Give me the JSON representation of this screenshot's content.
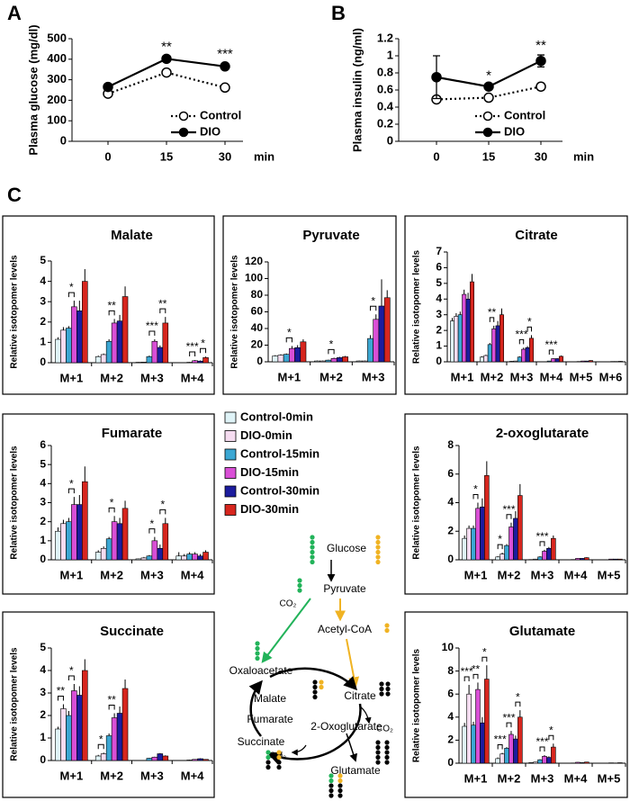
{
  "panels": [
    "A",
    "B",
    "C"
  ],
  "chart_data": [
    {
      "type": "line",
      "y_label": "Plasma glucose (mg/dl)",
      "x_label": "min",
      "categories": [
        "0",
        "15",
        "30"
      ],
      "ylim": [
        0,
        500
      ],
      "yticks": [
        0,
        100,
        200,
        300,
        400,
        500
      ],
      "legend": "lower right",
      "series": [
        {
          "name": "Control",
          "color": "#000000",
          "style": "dotted",
          "marker": "open",
          "values": [
            232,
            335,
            262
          ],
          "errors": [
            8,
            10,
            10
          ]
        },
        {
          "name": "DIO",
          "color": "#000000",
          "style": "solid",
          "marker": "filled",
          "values": [
            265,
            402,
            365
          ],
          "errors": [
            10,
            12,
            15
          ]
        }
      ],
      "annotations": [
        null,
        "**",
        "***"
      ]
    },
    {
      "type": "line",
      "y_label": "Plasma insulin (ng/ml)",
      "x_label": "min",
      "categories": [
        "0",
        "15",
        "30"
      ],
      "ylim": [
        0,
        1.2
      ],
      "yticks": [
        0,
        0.2,
        0.4,
        0.6,
        0.8,
        1,
        1.2
      ],
      "legend": "lower right",
      "series": [
        {
          "name": "Control",
          "color": "#000000",
          "style": "dotted",
          "marker": "open",
          "values": [
            0.49,
            0.51,
            0.64
          ],
          "errors": [
            0.03,
            0.03,
            0.04
          ]
        },
        {
          "name": "DIO",
          "color": "#000000",
          "style": "solid",
          "marker": "filled",
          "values": [
            0.75,
            0.64,
            0.94
          ],
          "errors": [
            0.25,
            0.02,
            0.07
          ]
        }
      ],
      "annotations": [
        null,
        "*",
        "**"
      ]
    },
    {
      "type": "bar",
      "title": "Malate",
      "y_label": "Relative isotopomer levels",
      "categories": [
        "M+1",
        "M+2",
        "M+3",
        "M+4"
      ],
      "ylim": [
        0,
        5
      ],
      "yticks": [
        0,
        1,
        2,
        3,
        4,
        5
      ],
      "series": [
        {
          "name": "Control-0min",
          "color": "#dff3f7",
          "values": [
            1.15,
            0.3,
            0.02,
            0
          ],
          "errors": [
            0.1,
            0.05,
            0.01,
            0.01
          ]
        },
        {
          "name": "DIO-0min",
          "color": "#f5dcf0",
          "values": [
            1.6,
            0.4,
            0.03,
            0
          ],
          "errors": [
            0.15,
            0.05,
            0.01,
            0.01
          ]
        },
        {
          "name": "Control-15min",
          "color": "#3ba7d3",
          "values": [
            1.7,
            1.05,
            0.3,
            0.02
          ],
          "errors": [
            0.1,
            0.1,
            0.05,
            0.01
          ]
        },
        {
          "name": "DIO-15min",
          "color": "#d94fd6",
          "values": [
            2.75,
            1.95,
            1.05,
            0.1
          ],
          "errors": [
            0.3,
            0.2,
            0.1,
            0.03
          ]
        },
        {
          "name": "Control-30min",
          "color": "#1c1c9e",
          "values": [
            2.55,
            2.05,
            0.75,
            0.08
          ],
          "errors": [
            0.5,
            0.3,
            0.1,
            0.03
          ]
        },
        {
          "name": "DIO-30min",
          "color": "#d7261e",
          "values": [
            4.0,
            3.25,
            1.95,
            0.25
          ],
          "errors": [
            0.6,
            0.5,
            0.3,
            0.05
          ]
        }
      ],
      "significance": [
        [
          null,
          "*",
          null
        ],
        [
          null,
          "**",
          null
        ],
        [
          null,
          "***",
          "**"
        ],
        [
          null,
          "***",
          "*"
        ]
      ]
    },
    {
      "type": "bar",
      "title": "Pyruvate",
      "y_label": "Relative isotopomer levels",
      "categories": [
        "M+1",
        "M+2",
        "M+3"
      ],
      "ylim": [
        0,
        120
      ],
      "yticks": [
        0,
        20,
        40,
        60,
        80,
        100,
        120
      ],
      "series": [
        {
          "color": "#dff3f7",
          "values": [
            7,
            1,
            1
          ],
          "errors": [
            1,
            0.5,
            0.5
          ]
        },
        {
          "color": "#f5dcf0",
          "values": [
            8,
            1,
            1
          ],
          "errors": [
            1,
            0.5,
            0.5
          ]
        },
        {
          "color": "#3ba7d3",
          "values": [
            9,
            2,
            28
          ],
          "errors": [
            1,
            0.5,
            4
          ]
        },
        {
          "color": "#d94fd6",
          "values": [
            16,
            4,
            51
          ],
          "errors": [
            3,
            1,
            6
          ]
        },
        {
          "color": "#1c1c9e",
          "values": [
            17,
            5,
            67
          ],
          "errors": [
            3,
            1,
            32
          ]
        },
        {
          "color": "#d7261e",
          "values": [
            24,
            6,
            77
          ],
          "errors": [
            3,
            1,
            9
          ]
        }
      ],
      "significance": [
        [
          null,
          "*",
          null
        ],
        [
          null,
          "*",
          null
        ],
        [
          null,
          "*",
          null
        ]
      ]
    },
    {
      "type": "bar",
      "title": "Citrate",
      "y_label": "Relative isotopomer levels",
      "categories": [
        "M+1",
        "M+2",
        "M+3",
        "M+4",
        "M+5",
        "M+6"
      ],
      "ylim": [
        0,
        7
      ],
      "yticks": [
        0,
        1,
        2,
        3,
        4,
        5,
        6,
        7
      ],
      "series": [
        {
          "color": "#dff3f7",
          "values": [
            2.6,
            0.3,
            0.03,
            0,
            0,
            0
          ],
          "errors": [
            0.2,
            0.05,
            0.01,
            0.01,
            0.01,
            0.01
          ]
        },
        {
          "color": "#f5dcf0",
          "values": [
            2.9,
            0.4,
            0.05,
            0,
            0,
            0
          ],
          "errors": [
            0.2,
            0.05,
            0.01,
            0.01,
            0.01,
            0.01
          ]
        },
        {
          "color": "#3ba7d3",
          "values": [
            3,
            1.1,
            0.3,
            0.05,
            0.02,
            0
          ],
          "errors": [
            0.2,
            0.1,
            0.05,
            0.01,
            0.01,
            0.01
          ]
        },
        {
          "color": "#d94fd6",
          "values": [
            4.3,
            2.1,
            0.8,
            0.2,
            0.05,
            0.02
          ],
          "errors": [
            0.3,
            0.2,
            0.1,
            0.03,
            0.01,
            0.01
          ]
        },
        {
          "color": "#1c1c9e",
          "values": [
            4,
            2.3,
            0.9,
            0.2,
            0.05,
            0.02
          ],
          "errors": [
            0.4,
            0.3,
            0.1,
            0.03,
            0.01,
            0.01
          ]
        },
        {
          "color": "#d7261e",
          "values": [
            5.1,
            3,
            1.5,
            0.35,
            0.08,
            0.03
          ],
          "errors": [
            0.5,
            0.4,
            0.2,
            0.05,
            0.02,
            0.01
          ]
        }
      ],
      "significance": [
        [
          null,
          null,
          null
        ],
        [
          null,
          "**",
          null
        ],
        [
          null,
          "***",
          "*"
        ],
        [
          null,
          "***",
          null
        ],
        [
          null,
          null,
          null
        ],
        [
          null,
          null,
          null
        ]
      ]
    },
    {
      "type": "bar",
      "title": "Fumarate",
      "y_label": "Relative isotopomer levels",
      "categories": [
        "M+1",
        "M+2",
        "M+3",
        "M+4"
      ],
      "ylim": [
        0,
        6
      ],
      "yticks": [
        0,
        1,
        2,
        3,
        4,
        5,
        6
      ],
      "series": [
        {
          "color": "#dff3f7",
          "values": [
            1.5,
            0.4,
            0.05,
            0.2
          ],
          "errors": [
            0.2,
            0.1,
            0.02,
            0.2
          ]
        },
        {
          "color": "#f5dcf0",
          "values": [
            1.9,
            0.6,
            0.1,
            0.2
          ],
          "errors": [
            0.2,
            0.1,
            0.05,
            0.1
          ]
        },
        {
          "color": "#3ba7d3",
          "values": [
            2,
            1.1,
            0.2,
            0.3
          ],
          "errors": [
            0.2,
            0.1,
            0.05,
            0.1
          ]
        },
        {
          "color": "#d94fd6",
          "values": [
            2.9,
            2,
            1,
            0.3
          ],
          "errors": [
            0.4,
            0.3,
            0.2,
            0.1
          ]
        },
        {
          "color": "#1c1c9e",
          "values": [
            2.9,
            1.9,
            0.6,
            0.2
          ],
          "errors": [
            0.5,
            0.3,
            0.2,
            0.1
          ]
        },
        {
          "color": "#d7261e",
          "values": [
            4.1,
            2.7,
            1.9,
            0.4
          ],
          "errors": [
            0.8,
            0.4,
            0.3,
            0.1
          ]
        }
      ],
      "significance": [
        [
          null,
          "*",
          null
        ],
        [
          null,
          "*",
          null
        ],
        [
          null,
          "*",
          "*"
        ],
        [
          null,
          null,
          null
        ]
      ]
    },
    {
      "type": "bar",
      "title": "2-oxoglutarate",
      "y_label": "Relative isotopomer levels",
      "categories": [
        "M+1",
        "M+2",
        "M+3",
        "M+4",
        "M+5"
      ],
      "ylim": [
        0,
        8
      ],
      "yticks": [
        0,
        2,
        4,
        6,
        8
      ],
      "series": [
        {
          "color": "#dff3f7",
          "values": [
            1.5,
            0.2,
            0.02,
            0,
            0
          ],
          "errors": [
            0.2,
            0.05,
            0.01,
            0.01,
            0.01
          ]
        },
        {
          "color": "#f5dcf0",
          "values": [
            2.2,
            0.4,
            0.05,
            0,
            0
          ],
          "errors": [
            0.2,
            0.1,
            0.01,
            0.01,
            0.01
          ]
        },
        {
          "color": "#3ba7d3",
          "values": [
            2.2,
            1,
            0.2,
            0.02,
            0
          ],
          "errors": [
            0.2,
            0.1,
            0.05,
            0.01,
            0.01
          ]
        },
        {
          "color": "#d94fd6",
          "values": [
            3.6,
            2.3,
            0.6,
            0.1,
            0.05
          ],
          "errors": [
            0.4,
            0.3,
            0.1,
            0.02,
            0.01
          ]
        },
        {
          "color": "#1c1c9e",
          "values": [
            3.7,
            2.9,
            0.8,
            0.1,
            0.05
          ],
          "errors": [
            0.6,
            0.5,
            0.1,
            0.02,
            0.01
          ]
        },
        {
          "color": "#d7261e",
          "values": [
            5.9,
            4.5,
            1.5,
            0.15,
            0.05
          ],
          "errors": [
            1,
            0.8,
            0.2,
            0.03,
            0.01
          ]
        }
      ],
      "significance": [
        [
          null,
          "*",
          null
        ],
        [
          "*",
          "***",
          null
        ],
        [
          null,
          "***",
          null
        ],
        [
          null,
          null,
          null
        ],
        [
          null,
          null,
          null
        ]
      ]
    },
    {
      "type": "bar",
      "title": "Succinate",
      "y_label": "Relative isotopomer levels",
      "categories": [
        "M+1",
        "M+2",
        "M+3",
        "M+4"
      ],
      "ylim": [
        0,
        5
      ],
      "yticks": [
        0,
        1,
        2,
        3,
        4,
        5
      ],
      "series": [
        {
          "color": "#dff3f7",
          "values": [
            1.4,
            0.2,
            0,
            0
          ],
          "errors": [
            0.1,
            0.05,
            0.01,
            0.01
          ]
        },
        {
          "color": "#f5dcf0",
          "values": [
            2.3,
            0.3,
            0,
            0
          ],
          "errors": [
            0.2,
            0.05,
            0.01,
            0.01
          ]
        },
        {
          "color": "#3ba7d3",
          "values": [
            2,
            1.1,
            0.1,
            0.02
          ],
          "errors": [
            0.2,
            0.1,
            0.02,
            0.01
          ]
        },
        {
          "color": "#d94fd6",
          "values": [
            3.1,
            1.9,
            0.15,
            0.05
          ],
          "errors": [
            0.3,
            0.2,
            0.02,
            0.01
          ]
        },
        {
          "color": "#1c1c9e",
          "values": [
            2.9,
            2.1,
            0.3,
            0.08
          ],
          "errors": [
            0.4,
            0.3,
            0.03,
            0.02
          ]
        },
        {
          "color": "#d7261e",
          "values": [
            4,
            3.2,
            0.2,
            0.05
          ],
          "errors": [
            0.5,
            0.4,
            0.03,
            0.01
          ]
        }
      ],
      "significance": [
        [
          "**",
          "*",
          null
        ],
        [
          "*",
          "**",
          null
        ],
        [
          null,
          null,
          null
        ],
        [
          null,
          null,
          null
        ]
      ]
    },
    {
      "type": "bar",
      "title": "Glutamate",
      "y_label": "Relative isotopomer levels",
      "categories": [
        "M+1",
        "M+2",
        "M+3",
        "M+4",
        "M+5"
      ],
      "ylim": [
        0,
        10
      ],
      "yticks": [
        0,
        2,
        4,
        6,
        8,
        10
      ],
      "series": [
        {
          "color": "#dff3f7",
          "values": [
            3.2,
            0.4,
            0.05,
            0,
            0
          ],
          "errors": [
            0.3,
            0.1,
            0.02,
            0.01,
            0.01
          ]
        },
        {
          "color": "#f5dcf0",
          "values": [
            6,
            0.8,
            0.1,
            0,
            0
          ],
          "errors": [
            0.8,
            0.1,
            0.02,
            0.01,
            0.01
          ]
        },
        {
          "color": "#3ba7d3",
          "values": [
            3.3,
            1.3,
            0.3,
            0.02,
            0
          ],
          "errors": [
            0.3,
            0.1,
            0.05,
            0.01,
            0.01
          ]
        },
        {
          "color": "#d94fd6",
          "values": [
            6.4,
            2.5,
            0.6,
            0.08,
            0.03
          ],
          "errors": [
            0.6,
            0.3,
            0.1,
            0.02,
            0.01
          ]
        },
        {
          "color": "#1c1c9e",
          "values": [
            3.5,
            2.1,
            0.5,
            0.05,
            0.02
          ],
          "errors": [
            0.5,
            0.3,
            0.1,
            0.02,
            0.01
          ]
        },
        {
          "color": "#d7261e",
          "values": [
            7.3,
            4,
            1.4,
            0.1,
            0.04
          ],
          "errors": [
            1.2,
            0.6,
            0.3,
            0.02,
            0.01
          ]
        }
      ],
      "significance": [
        [
          "***",
          "**",
          "*"
        ],
        [
          "***",
          "***",
          "*"
        ],
        [
          null,
          "***",
          "*"
        ],
        [
          null,
          null,
          null
        ],
        [
          null,
          null,
          null
        ]
      ]
    }
  ],
  "diagram": {
    "nodes": [
      {
        "label": "Glucose"
      },
      {
        "label": "Pyruvate"
      },
      {
        "label": "CO₂"
      },
      {
        "label": "Acetyl-CoA"
      },
      {
        "label": "Oxaloacetate"
      },
      {
        "label": "Citrate"
      },
      {
        "label": "Malate"
      },
      {
        "label": "Fumarate"
      },
      {
        "label": "2-Oxoglutarate"
      },
      {
        "label": "CO₂"
      },
      {
        "label": "Succinate"
      },
      {
        "label": "CO₂"
      },
      {
        "label": "Glutamate"
      }
    ]
  }
}
